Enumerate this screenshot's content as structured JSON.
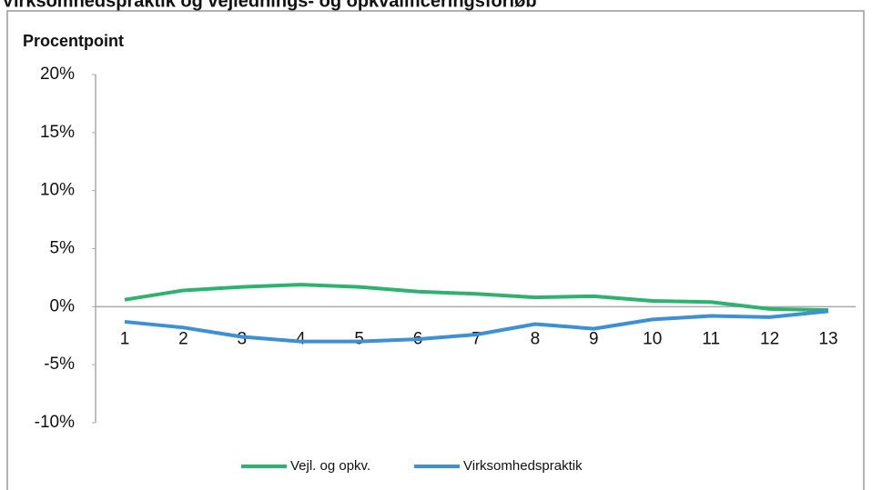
{
  "chart_data": {
    "type": "line",
    "title": "Virksomhedspraktik og vejlednings- og opkvalificeringsforløb",
    "y_label": "Procentpoint",
    "categories": [
      "1",
      "2",
      "3",
      "4",
      "5",
      "6",
      "7",
      "8",
      "9",
      "10",
      "11",
      "12",
      "13"
    ],
    "series": [
      {
        "name": "Vejl. og opkv.",
        "color": "#2db36f",
        "values": [
          0.6,
          1.4,
          1.7,
          1.9,
          1.7,
          1.3,
          1.1,
          0.8,
          0.9,
          0.5,
          0.4,
          -0.2,
          -0.3
        ]
      },
      {
        "name": "Virksomhedspraktik",
        "color": "#3d8fd6",
        "values": [
          -1.3,
          -1.8,
          -2.6,
          -3.0,
          -3.0,
          -2.8,
          -2.4,
          -1.5,
          -1.9,
          -1.1,
          -0.8,
          -0.9,
          -0.4
        ]
      }
    ],
    "ylim": [
      -10,
      20
    ],
    "yticks": [
      {
        "value": -10,
        "label": "-10%"
      },
      {
        "value": -5,
        "label": "-5%"
      },
      {
        "value": 0,
        "label": "0%"
      },
      {
        "value": 5,
        "label": "5%"
      },
      {
        "value": 10,
        "label": "10%"
      },
      {
        "value": 15,
        "label": "15%"
      },
      {
        "value": 20,
        "label": "20%"
      }
    ],
    "legend": "bottom"
  }
}
